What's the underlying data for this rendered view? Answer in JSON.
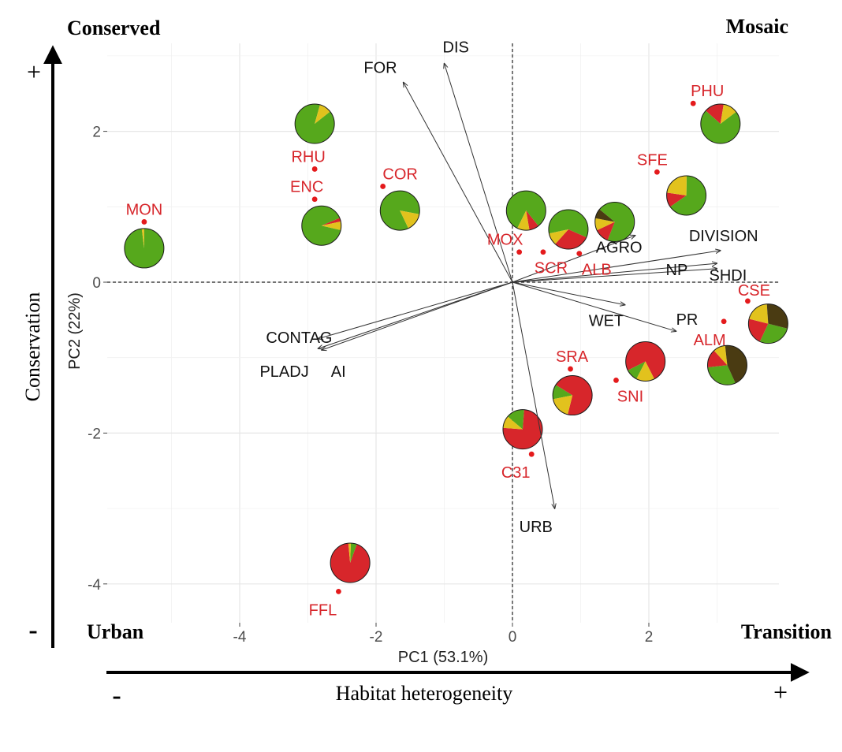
{
  "chart_data": {
    "type": "scatter",
    "xlabel": "PC1 (53.1%)",
    "ylabel": "PC2 (22%)",
    "xlim": [
      -5.8,
      3.9
    ],
    "ylim": [
      -4.5,
      3.2
    ],
    "x_ticks": [
      -4,
      -2,
      0,
      2
    ],
    "y_ticks": [
      -4,
      -2,
      0,
      2
    ],
    "grid": true,
    "colors": {
      "site_label": "#d7262b",
      "point": "#e41a1c",
      "forest_green": "#56a81c",
      "urban_red": "#d7262b",
      "agro_yellow": "#e2c21d",
      "dark_brown": "#4a3b12",
      "arrow": "#333333"
    },
    "quadrant_labels": {
      "top_left": "Conserved",
      "top_right": "Mosaic",
      "bottom_left": "Urban",
      "bottom_right": "Transition"
    },
    "outer_axes": {
      "x_title": "Habitat heterogeneity",
      "y_title": "Conservation",
      "x_minus": "-",
      "x_plus": "+",
      "y_minus": "-",
      "y_plus": "+"
    },
    "sites": [
      {
        "label": "MON",
        "x": -5.4,
        "y": 0.8
      },
      {
        "label": "RHU",
        "x": -2.9,
        "y": 1.5
      },
      {
        "label": "ENC",
        "x": -2.9,
        "y": 1.1
      },
      {
        "label": "COR",
        "x": -1.9,
        "y": 1.27
      },
      {
        "label": "MOX",
        "x": 0.1,
        "y": 0.4
      },
      {
        "label": "SCR",
        "x": 0.45,
        "y": 0.4
      },
      {
        "label": "ALB",
        "x": 0.98,
        "y": 0.38
      },
      {
        "label": "PHU",
        "x": 2.65,
        "y": 2.37
      },
      {
        "label": "SFE",
        "x": 2.12,
        "y": 1.46
      },
      {
        "label": "CSE",
        "x": 3.45,
        "y": -0.25
      },
      {
        "label": "ALM",
        "x": 3.1,
        "y": -0.52
      },
      {
        "label": "SRA",
        "x": 0.85,
        "y": -1.15
      },
      {
        "label": "SNI",
        "x": 1.52,
        "y": -1.3
      },
      {
        "label": "C31",
        "x": 0.28,
        "y": -2.28
      },
      {
        "label": "FFL",
        "x": -2.55,
        "y": -4.1
      }
    ],
    "loadings": [
      {
        "label": "FOR",
        "x": -1.6,
        "y": 2.65
      },
      {
        "label": "DIS",
        "x": -1.0,
        "y": 2.9
      },
      {
        "label": "AGRO",
        "x": 1.8,
        "y": 0.62
      },
      {
        "label": "DIVISION",
        "x": 3.05,
        "y": 0.42
      },
      {
        "label": "SHDI",
        "x": 3.0,
        "y": 0.25
      },
      {
        "label": "NP",
        "x": 3.0,
        "y": 0.18
      },
      {
        "label": "WET",
        "x": 1.65,
        "y": -0.3
      },
      {
        "label": "PR",
        "x": 2.4,
        "y": -0.65
      },
      {
        "label": "CONTAG",
        "x": -2.85,
        "y": -0.75
      },
      {
        "label": "PLADJ",
        "x": -2.85,
        "y": -0.88
      },
      {
        "label": "AI",
        "x": -2.8,
        "y": -0.9
      },
      {
        "label": "URB",
        "x": 0.62,
        "y": -3.0
      }
    ],
    "pies": [
      {
        "x": -5.4,
        "y": 0.45,
        "forest": 0.98,
        "urban": 0.0,
        "agro": 0.02,
        "dark": 0.0
      },
      {
        "x": -2.9,
        "y": 2.1,
        "forest": 0.9,
        "urban": 0.0,
        "agro": 0.1,
        "dark": 0.0
      },
      {
        "x": -2.8,
        "y": 0.75,
        "forest": 0.9,
        "urban": 0.03,
        "agro": 0.07,
        "dark": 0.0
      },
      {
        "x": -1.65,
        "y": 0.95,
        "forest": 0.85,
        "urban": 0.0,
        "agro": 0.15,
        "dark": 0.0
      },
      {
        "x": 0.2,
        "y": 0.95,
        "forest": 0.82,
        "urban": 0.08,
        "agro": 0.1,
        "dark": 0.0
      },
      {
        "x": 0.82,
        "y": 0.7,
        "forest": 0.6,
        "urban": 0.3,
        "agro": 0.1,
        "dark": 0.0
      },
      {
        "x": 1.5,
        "y": 0.8,
        "forest": 0.7,
        "urban": 0.12,
        "agro": 0.1,
        "dark": 0.08
      },
      {
        "x": 2.55,
        "y": 1.15,
        "forest": 0.65,
        "urban": 0.12,
        "agro": 0.23,
        "dark": 0.0
      },
      {
        "x": 3.05,
        "y": 2.1,
        "forest": 0.72,
        "urban": 0.16,
        "agro": 0.12,
        "dark": 0.0
      },
      {
        "x": 3.75,
        "y": -0.55,
        "forest": 0.28,
        "urban": 0.22,
        "agro": 0.2,
        "dark": 0.3
      },
      {
        "x": 3.15,
        "y": -1.1,
        "forest": 0.3,
        "urban": 0.15,
        "agro": 0.1,
        "dark": 0.45
      },
      {
        "x": 1.95,
        "y": -1.05,
        "forest": 0.1,
        "urban": 0.75,
        "agro": 0.15,
        "dark": 0.0
      },
      {
        "x": 0.88,
        "y": -1.5,
        "forest": 0.12,
        "urban": 0.7,
        "agro": 0.18,
        "dark": 0.0
      },
      {
        "x": 0.15,
        "y": -1.95,
        "forest": 0.15,
        "urban": 0.75,
        "agro": 0.1,
        "dark": 0.0
      },
      {
        "x": -2.38,
        "y": -3.72,
        "forest": 0.05,
        "urban": 0.93,
        "agro": 0.02,
        "dark": 0.0
      }
    ]
  }
}
